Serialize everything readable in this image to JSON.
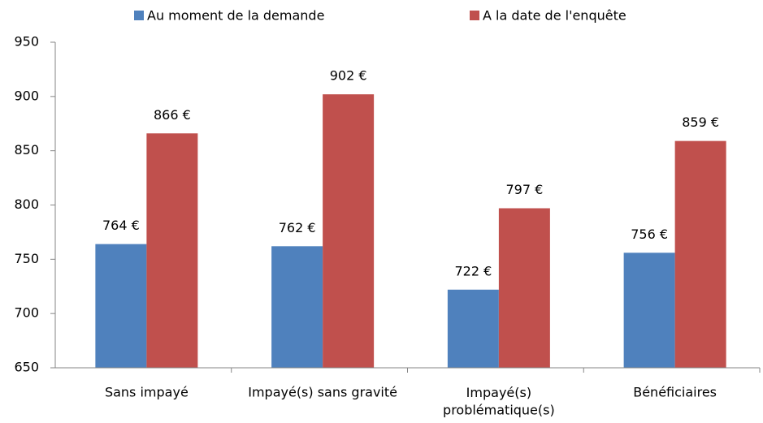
{
  "chart_data": {
    "type": "bar",
    "categories": [
      "Sans impayé",
      "Impayé(s) sans gravité",
      "Impayé(s)\nproblématique(s)",
      "Bénéficiaires"
    ],
    "series": [
      {
        "name": "Au moment de la demande",
        "color": "#4f81bd",
        "values": [
          764,
          762,
          722,
          756
        ],
        "value_labels": [
          "764 €",
          "762 €",
          "722 €",
          "756 €"
        ]
      },
      {
        "name": "A la date de l'enquête",
        "color": "#c0504d",
        "values": [
          866,
          902,
          797,
          859
        ],
        "value_labels": [
          "866 €",
          "902 €",
          "797 €",
          "859 €"
        ]
      }
    ],
    "ylim": [
      650,
      950
    ],
    "yticks": [
      650,
      700,
      750,
      800,
      850,
      900,
      950
    ],
    "legend": "top"
  }
}
